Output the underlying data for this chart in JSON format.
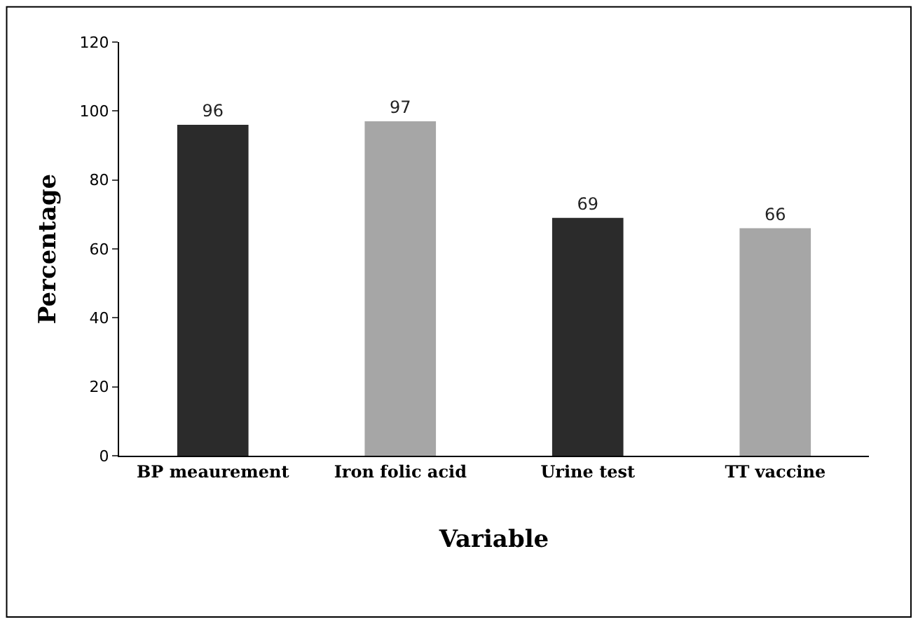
{
  "chart_data": {
    "type": "bar",
    "xlabel": "Variable",
    "ylabel": "Percentage",
    "categories": [
      "BP meaurement",
      "Iron folic acid",
      "Urine test",
      "TT vaccine"
    ],
    "values": [
      96,
      97,
      69,
      66
    ],
    "colors": [
      "#2b2b2b",
      "#a6a6a6",
      "#2b2b2b",
      "#a6a6a6"
    ],
    "ylim": [
      0,
      120
    ],
    "yticks": [
      0,
      20,
      40,
      60,
      80,
      100,
      120
    ],
    "data_labels": true,
    "legend": false
  }
}
